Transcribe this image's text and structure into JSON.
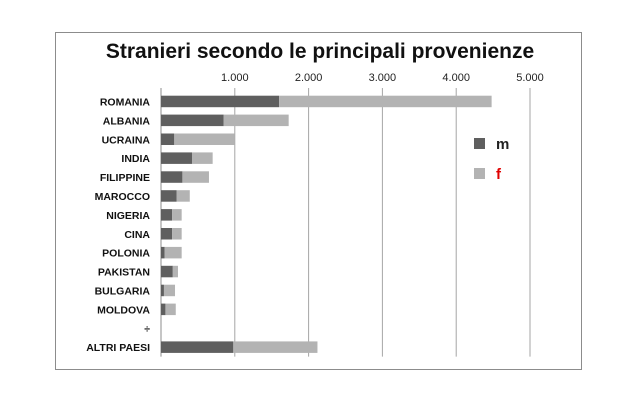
{
  "chart_data": {
    "type": "bar",
    "orientation": "horizontal",
    "stacked": true,
    "title": "Stranieri secondo le principali provenienze",
    "categories": [
      "ROMANIA",
      "ALBANIA",
      "UCRAINA",
      "INDIA",
      "FILIPPINE",
      "MAROCCO",
      "NIGERIA",
      "CINA",
      "POLONIA",
      "PAKISTAN",
      "BULGARIA",
      "MOLDOVA",
      "÷",
      "ALTRI PAESI"
    ],
    "series": [
      {
        "name": "m",
        "color": "#5f5f5f",
        "values": [
          1600,
          850,
          180,
          420,
          290,
          210,
          150,
          150,
          50,
          160,
          40,
          60,
          0,
          980
        ]
      },
      {
        "name": "f",
        "color": "#b3b3b3",
        "values": [
          2880,
          880,
          820,
          280,
          360,
          180,
          130,
          130,
          230,
          70,
          150,
          140,
          0,
          1140
        ]
      }
    ],
    "xlim": [
      0,
      5000
    ],
    "xticks": [
      0,
      1000,
      2000,
      3000,
      4000,
      5000
    ],
    "xtick_labels": [
      "",
      "1.000",
      "2.000",
      "3.000",
      "4.000",
      "5.000"
    ],
    "axis_position": "top",
    "grid": true,
    "legend": {
      "position": "right",
      "label_colors": [
        "#222222",
        "#e00000"
      ]
    }
  }
}
